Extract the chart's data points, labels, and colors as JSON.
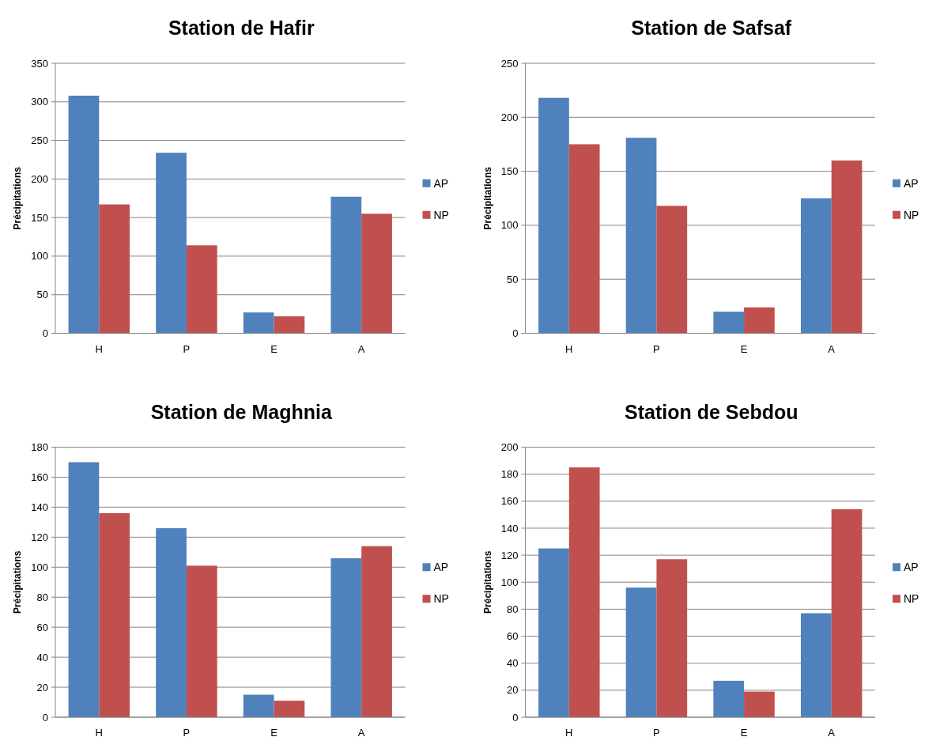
{
  "chart_data": [
    {
      "type": "bar",
      "title": "Station de Hafir",
      "ylabel": "Précipitations",
      "categories": [
        "H",
        "P",
        "E",
        "A"
      ],
      "series": [
        {
          "name": "AP",
          "color": "#4f81bd",
          "values": [
            308,
            234,
            27,
            177
          ]
        },
        {
          "name": "NP",
          "color": "#c0504d",
          "values": [
            167,
            114,
            22,
            155
          ]
        }
      ],
      "ylim": [
        0,
        350
      ],
      "yticks": [
        0,
        50,
        100,
        150,
        200,
        250,
        300,
        350
      ],
      "grid": "y",
      "legend": "right"
    },
    {
      "type": "bar",
      "title": "Station de Safsaf",
      "ylabel": "Précipitations",
      "categories": [
        "H",
        "P",
        "E",
        "A"
      ],
      "series": [
        {
          "name": "AP",
          "color": "#4f81bd",
          "values": [
            218,
            181,
            20,
            125
          ]
        },
        {
          "name": "NP",
          "color": "#c0504d",
          "values": [
            175,
            118,
            24,
            160
          ]
        }
      ],
      "ylim": [
        0,
        250
      ],
      "yticks": [
        0,
        50,
        100,
        150,
        200,
        250
      ],
      "grid": "y",
      "legend": "right"
    },
    {
      "type": "bar",
      "title": "Station de Maghnia",
      "ylabel": "Précipitations",
      "categories": [
        "H",
        "P",
        "E",
        "A"
      ],
      "series": [
        {
          "name": "AP",
          "color": "#4f81bd",
          "values": [
            170,
            126,
            15,
            106
          ]
        },
        {
          "name": "NP",
          "color": "#c0504d",
          "values": [
            136,
            101,
            11,
            114
          ]
        }
      ],
      "ylim": [
        0,
        180
      ],
      "yticks": [
        0,
        20,
        40,
        60,
        80,
        100,
        120,
        140,
        160,
        180
      ],
      "grid": "y",
      "legend": "right"
    },
    {
      "type": "bar",
      "title": "Station de Sebdou",
      "ylabel": "Précipitations",
      "categories": [
        "H",
        "P",
        "E",
        "A"
      ],
      "series": [
        {
          "name": "AP",
          "color": "#4f81bd",
          "values": [
            125,
            96,
            27,
            77
          ]
        },
        {
          "name": "NP",
          "color": "#c0504d",
          "values": [
            185,
            117,
            19,
            154
          ]
        }
      ],
      "ylim": [
        0,
        200
      ],
      "yticks": [
        0,
        20,
        40,
        60,
        80,
        100,
        120,
        140,
        160,
        180,
        200
      ],
      "grid": "y",
      "legend": "right"
    }
  ]
}
